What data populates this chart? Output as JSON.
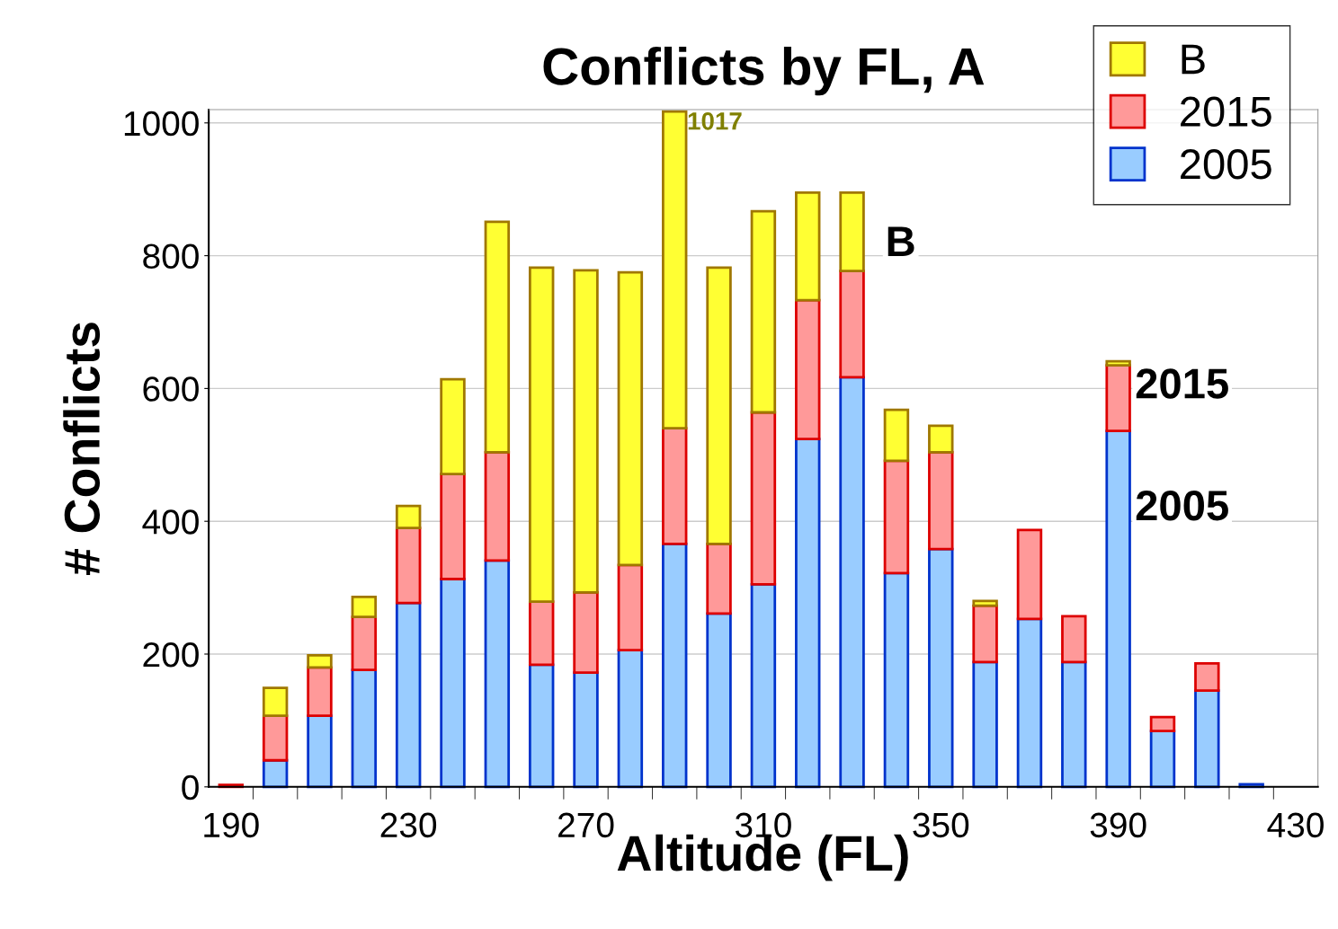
{
  "chart_data": {
    "type": "bar",
    "title": "Conflicts by FL, A",
    "xlabel": "Altitude (FL)",
    "ylabel": "# Conflicts",
    "stacked": true,
    "categories": [
      "190",
      null,
      null,
      null,
      "230",
      null,
      null,
      null,
      "270",
      null,
      null,
      null,
      "310",
      null,
      null,
      null,
      "350",
      null,
      null,
      null,
      "390",
      null,
      null,
      null,
      "430"
    ],
    "series": [
      {
        "name": "2005",
        "color": "#99ccff",
        "values": [
          null,
          40,
          107,
          176,
          277,
          313,
          341,
          184,
          172,
          206,
          366,
          261,
          305,
          524,
          617,
          322,
          358,
          188,
          253,
          188,
          536,
          84,
          145,
          4,
          null
        ]
      },
      {
        "name": "2015",
        "color": "#ff9999",
        "values": [
          3,
          67,
          73,
          80,
          113,
          158,
          163,
          95,
          121,
          128,
          174,
          105,
          259,
          209,
          160,
          169,
          146,
          85,
          134,
          69,
          99,
          21,
          41,
          null,
          null
        ]
      },
      {
        "name": "B",
        "color": "#ffff33",
        "values": [
          null,
          42,
          18,
          30,
          33,
          143,
          347,
          503,
          485,
          441,
          477,
          416,
          303,
          162,
          118,
          77,
          40,
          7,
          null,
          null,
          6,
          null,
          null,
          null,
          null
        ]
      }
    ],
    "totals": [
      null,
      null,
      null,
      null,
      null,
      null,
      null,
      null,
      null,
      null,
      "1017",
      null,
      null,
      null,
      null,
      null,
      null,
      null,
      null,
      null,
      null,
      null,
      null,
      null,
      null
    ],
    "ylim": [
      0,
      1020
    ],
    "yticks": [
      0,
      200,
      400,
      600,
      800,
      1000
    ],
    "grid": "y",
    "legend": "top right",
    "annotations": [
      "B",
      "2015",
      "2005"
    ]
  }
}
